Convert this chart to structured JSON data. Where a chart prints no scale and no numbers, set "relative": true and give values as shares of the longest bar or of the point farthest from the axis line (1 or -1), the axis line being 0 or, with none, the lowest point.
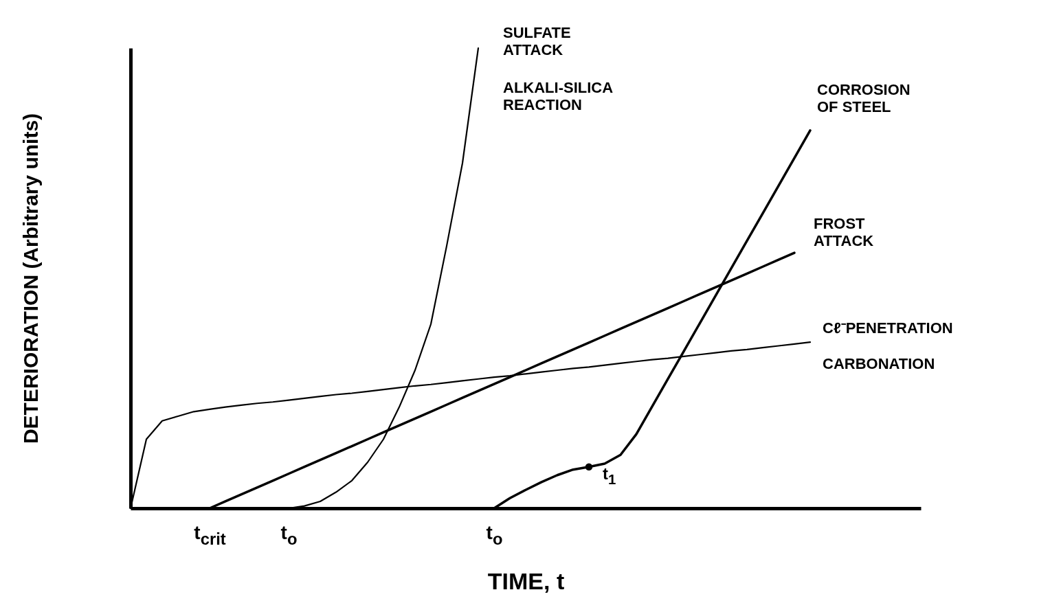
{
  "chart_data": {
    "type": "line",
    "relative": true,
    "xlabel": "TIME, t",
    "ylabel": "DETERIORATION (Arbitrary units)",
    "categories": [
      null,
      null,
      null,
      null,
      null,
      "t$_{crit}$",
      null,
      null,
      null,
      null,
      "t$_{o}$",
      null,
      null,
      null,
      null,
      null,
      null,
      null,
      null,
      null,
      null,
      null,
      null,
      "t$_{o}$",
      null,
      null,
      null,
      null,
      null,
      null,
      null,
      null,
      null,
      null,
      null,
      null,
      null,
      null,
      null,
      null,
      null,
      null,
      null,
      null,
      null,
      null,
      null,
      null,
      null,
      null,
      null
    ],
    "series": [
      {
        "name": "SULFATE ATTACK",
        "color": "#000000",
        "values": [
          null,
          null,
          null,
          null,
          null,
          null,
          null,
          null,
          null,
          null,
          0,
          0.005,
          0.015,
          0.035,
          0.06,
          0.1,
          0.15,
          0.22,
          0.3,
          0.4,
          0.57,
          0.75,
          1.0,
          null,
          null,
          null,
          null,
          null,
          null,
          null,
          null,
          null,
          null,
          null,
          null,
          null,
          null,
          null,
          null,
          null,
          null,
          null,
          null,
          null,
          null,
          null,
          null,
          null,
          null,
          null,
          null
        ]
      },
      {
        "name": "CORROSION OF STEEL",
        "color": "#000000",
        "values": [
          null,
          null,
          null,
          null,
          null,
          null,
          null,
          null,
          null,
          null,
          null,
          null,
          null,
          null,
          null,
          null,
          null,
          null,
          null,
          null,
          null,
          null,
          null,
          0,
          0.022,
          0.04,
          0.057,
          0.072,
          0.084,
          0.09,
          0.097,
          0.116,
          0.161,
          0.221,
          0.281,
          0.341,
          0.401,
          0.461,
          0.521,
          0.581,
          0.641,
          0.701,
          0.761,
          0.821,
          null,
          null,
          null,
          null,
          null,
          null,
          null
        ]
      },
      {
        "name": "FROST ATTACK",
        "color": "#000000",
        "values": [
          null,
          null,
          null,
          null,
          null,
          0,
          0.015,
          0.03,
          0.045,
          0.06,
          0.075,
          0.09,
          0.105,
          0.12,
          0.135,
          0.15,
          0.165,
          0.18,
          0.195,
          0.21,
          0.225,
          0.24,
          0.255,
          0.27,
          0.285,
          0.3,
          0.315,
          0.33,
          0.345,
          0.36,
          0.375,
          0.39,
          0.405,
          0.42,
          0.435,
          0.45,
          0.465,
          0.48,
          0.495,
          0.51,
          0.525,
          0.54,
          0.555,
          null,
          null,
          null,
          null,
          null,
          null,
          null,
          null
        ]
      },
      {
        "name": "Cℓ⁻PENETRATION",
        "color": "#000000",
        "values": [
          0,
          0.15,
          0.19,
          0.2,
          0.21,
          0.215,
          0.22,
          0.224,
          0.228,
          0.231,
          0.235,
          0.239,
          0.243,
          0.247,
          0.25,
          0.254,
          0.258,
          0.262,
          0.266,
          0.269,
          0.273,
          0.277,
          0.281,
          0.285,
          0.288,
          0.292,
          0.296,
          0.3,
          0.304,
          0.307,
          0.311,
          0.315,
          0.319,
          0.323,
          0.326,
          0.33,
          0.334,
          0.338,
          0.342,
          0.345,
          0.349,
          0.353,
          0.357,
          0.361,
          null,
          null,
          null,
          null,
          null,
          null,
          null
        ]
      },
      {
        "type": "scatter",
        "color": "#000000",
        "values": [
          null,
          null,
          null,
          null,
          null,
          null,
          null,
          null,
          null,
          null,
          null,
          null,
          null,
          null,
          null,
          null,
          null,
          null,
          null,
          null,
          null,
          null,
          null,
          null,
          null,
          null,
          null,
          null,
          null,
          0.09,
          null,
          null,
          null,
          null,
          null,
          null,
          null,
          null,
          null,
          null,
          null,
          null,
          null,
          null,
          null,
          null,
          null,
          null,
          null,
          null,
          null
        ]
      }
    ],
    "annotations": [
      "ALKALI-SILICA REACTION",
      "CARBONATION",
      "t$_{1}$"
    ]
  }
}
